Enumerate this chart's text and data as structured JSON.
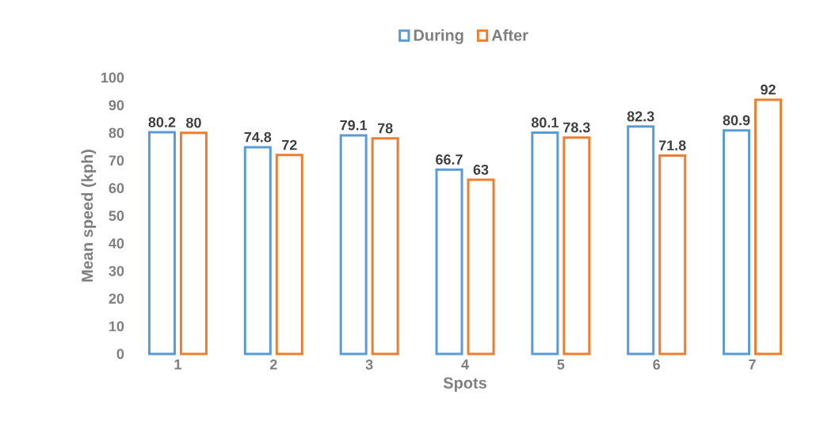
{
  "chart_data": {
    "type": "bar",
    "xlabel": "Spots",
    "ylabel": "Mean speed (kph)",
    "categories": [
      "1",
      "2",
      "3",
      "4",
      "5",
      "6",
      "7"
    ],
    "series": [
      {
        "name": "During",
        "color": "#5b9bd5",
        "values": [
          80.2,
          74.8,
          79.1,
          66.7,
          80.1,
          82.3,
          80.9
        ]
      },
      {
        "name": "After",
        "color": "#ed7d31",
        "values": [
          80,
          72,
          78,
          63,
          78.3,
          71.8,
          92
        ]
      }
    ],
    "ylim": [
      0,
      100
    ],
    "yticks": [
      0,
      10,
      20,
      30,
      40,
      50,
      60,
      70,
      80,
      90,
      100
    ],
    "data_labels": true,
    "legend": "top",
    "grid": false
  }
}
